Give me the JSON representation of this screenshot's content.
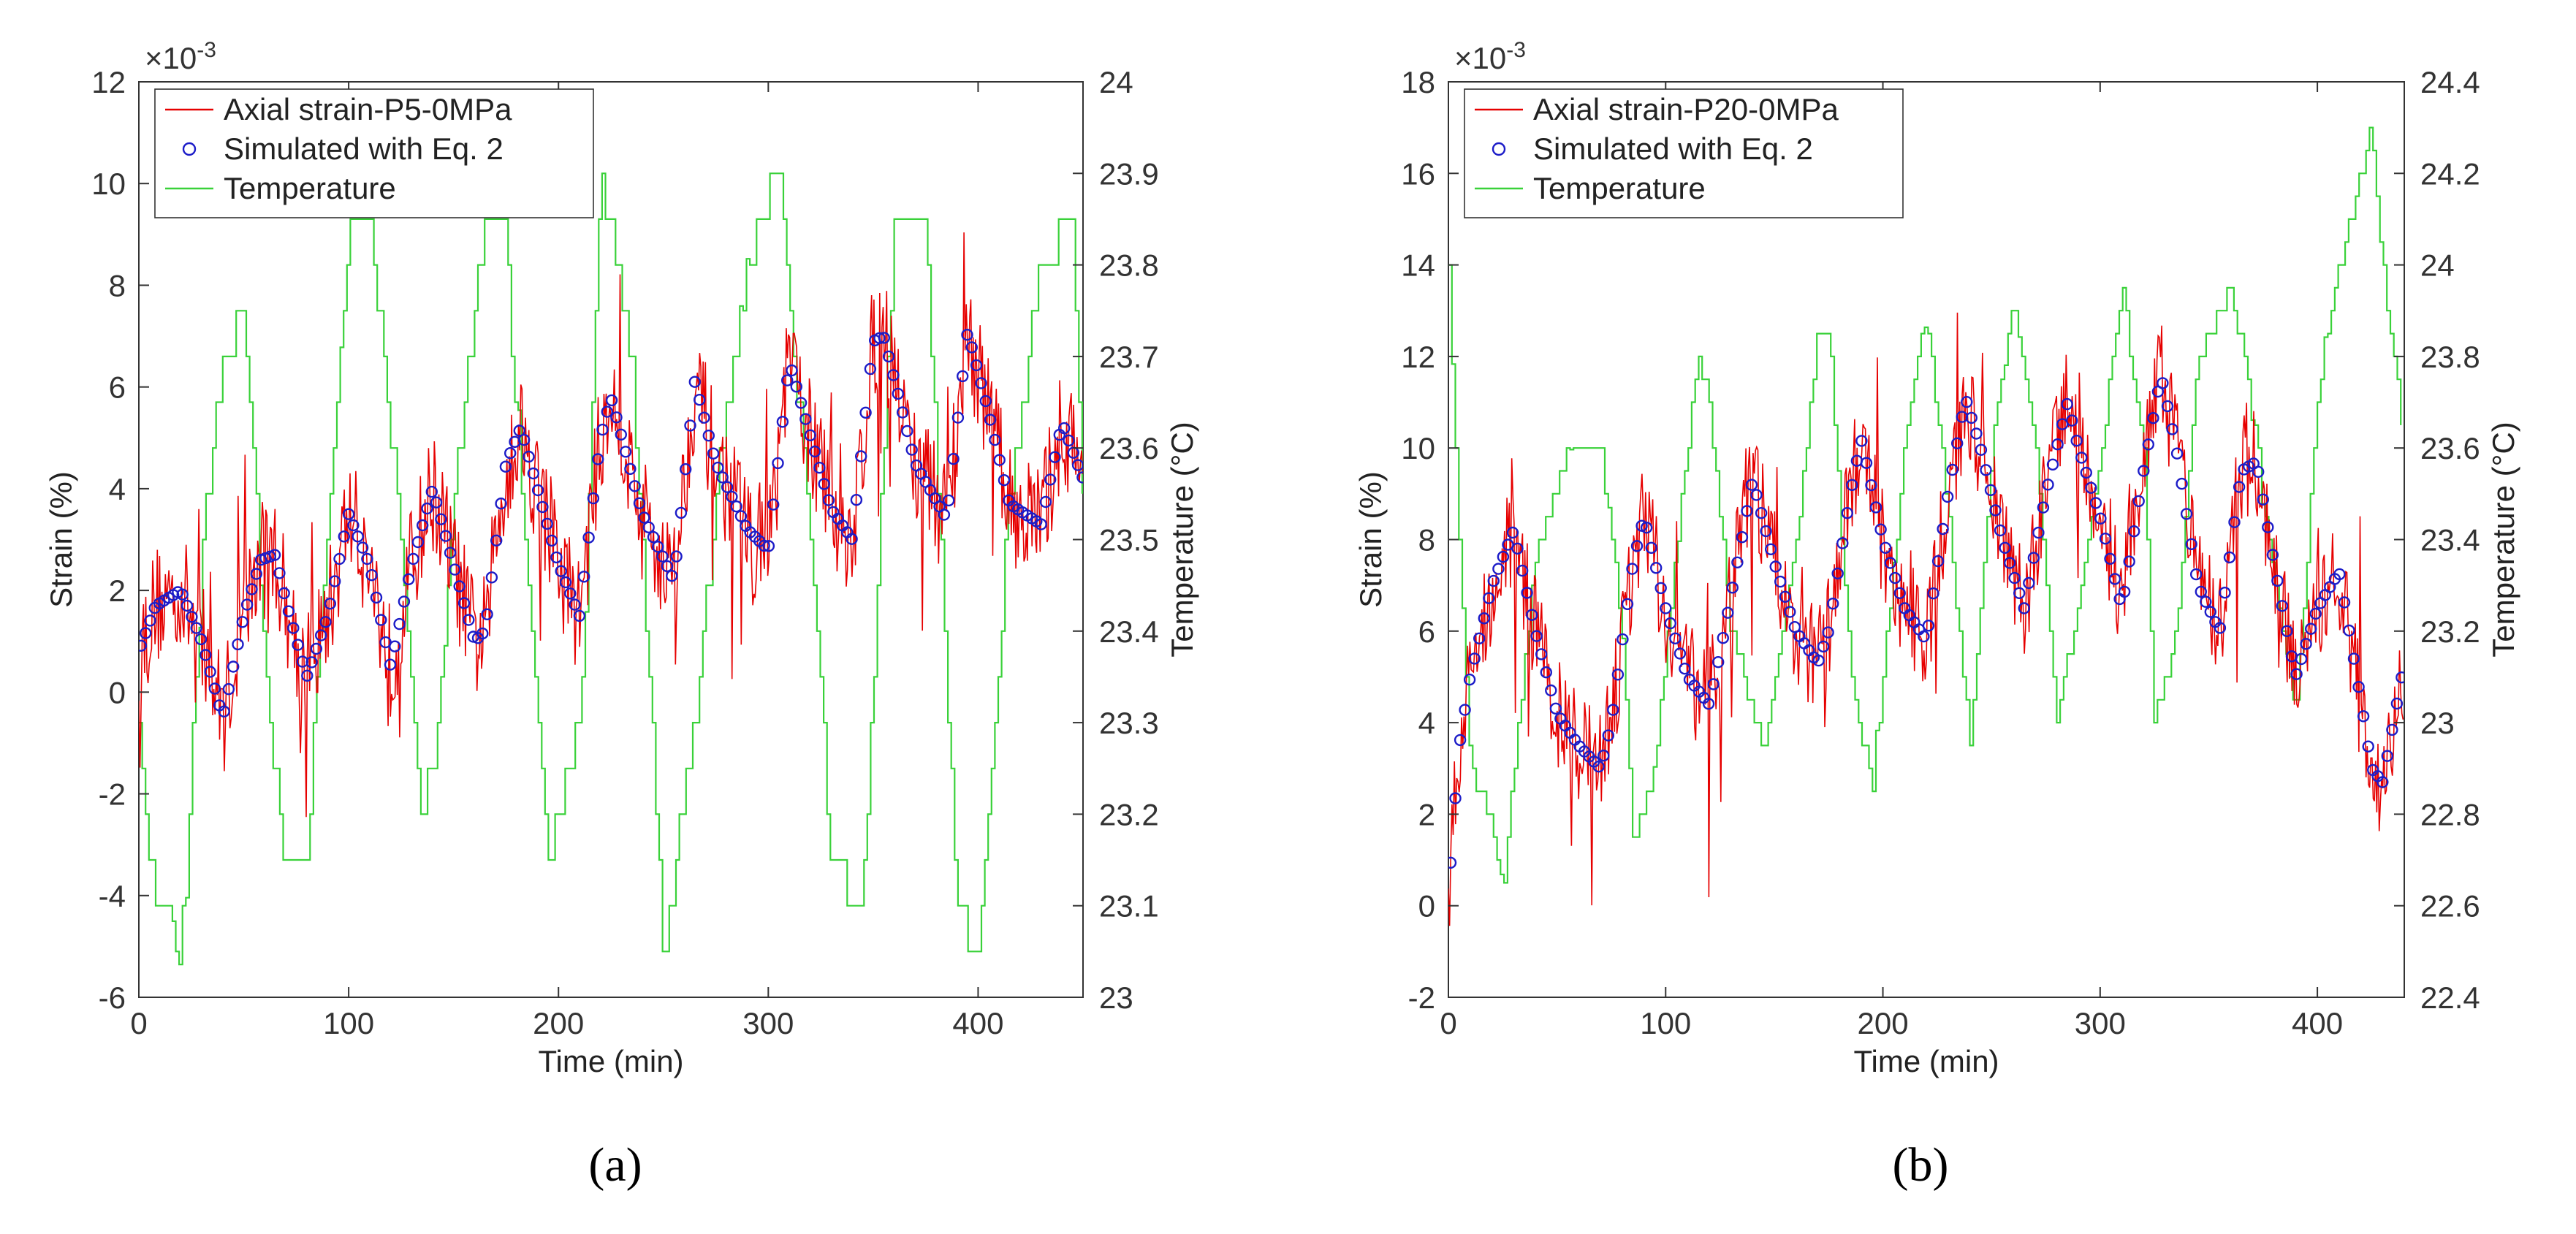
{
  "figure": {
    "panel_labels": [
      "(a)",
      "(b)"
    ]
  },
  "chart_data": [
    {
      "type": "line",
      "panel": "(a)",
      "xlabel": "Time (min)",
      "ylabel": "Strain (%)",
      "y2label": "Temperature (°C)",
      "exponent_label": "×10",
      "exponent_power": "-3",
      "xlim": [
        0,
        450
      ],
      "ylim": [
        -6,
        12
      ],
      "y2lim": [
        23.0,
        24.0
      ],
      "x_ticks": [
        "0",
        "100",
        "200",
        "300",
        "400"
      ],
      "y_ticks": [
        "-6",
        "-4",
        "-2",
        "0",
        "2",
        "4",
        "6",
        "8",
        "10",
        "12"
      ],
      "y2_ticks": [
        "23",
        "23.1",
        "23.2",
        "23.3",
        "23.4",
        "23.5",
        "23.6",
        "23.7",
        "23.8",
        "23.9",
        "24"
      ],
      "legend": [
        "Axial strain-P5-0MPa",
        "Simulated with Eq. 2",
        "Temperature"
      ],
      "legend_position": "top-left",
      "colors": {
        "strain": "#e60000",
        "simulated": "#1c1cc8",
        "temperature": "#39d139"
      },
      "simulated_key": {
        "t": [
          0,
          8,
          20,
          30,
          40,
          50,
          58,
          65,
          70,
          80,
          90,
          100,
          110,
          120,
          130,
          140,
          150,
          160,
          165,
          175,
          182,
          190,
          200,
          210,
          220,
          225,
          240,
          255,
          265,
          275,
          290,
          300,
          310,
          330,
          340,
          350,
          355,
          370,
          385,
          395,
          405,
          415,
          430,
          440,
          450
        ],
        "strain": [
          0.8,
          1.7,
          2.0,
          1.0,
          -0.5,
          1.5,
          2.6,
          2.7,
          1.8,
          0.3,
          1.5,
          3.5,
          2.5,
          0.5,
          2.5,
          4.0,
          2.5,
          1.0,
          1.2,
          4.5,
          5.2,
          4.0,
          2.5,
          1.5,
          5.0,
          5.8,
          3.5,
          2.2,
          6.1,
          4.5,
          3.2,
          2.8,
          6.5,
          3.6,
          3.0,
          6.9,
          7.0,
          4.5,
          3.4,
          7.1,
          5.5,
          3.7,
          3.3,
          5.3,
          4.2
        ]
      },
      "temperature_key": {
        "t": [
          0,
          5,
          10,
          20,
          25,
          30,
          40,
          50,
          55,
          60,
          70,
          80,
          85,
          95,
          100,
          110,
          125,
          135,
          140,
          150,
          165,
          175,
          180,
          195,
          210,
          220,
          235,
          250,
          265,
          280,
          295,
          305,
          320,
          330,
          345,
          360,
          375,
          390,
          400,
          415,
          430,
          445,
          450
        ],
        "temp": [
          23.3,
          23.15,
          23.1,
          23.05,
          23.25,
          23.5,
          23.7,
          23.75,
          23.6,
          23.35,
          23.15,
          23.15,
          23.35,
          23.65,
          23.85,
          23.85,
          23.5,
          23.2,
          23.25,
          23.55,
          23.85,
          23.85,
          23.6,
          23.15,
          23.3,
          23.9,
          23.7,
          23.05,
          23.3,
          23.65,
          23.85,
          23.9,
          23.5,
          23.15,
          23.1,
          23.85,
          23.85,
          23.1,
          23.05,
          23.55,
          23.8,
          23.85,
          23.5
        ]
      }
    },
    {
      "type": "line",
      "panel": "(b)",
      "xlabel": "Time (min)",
      "ylabel": "Strain (%)",
      "y2label": "Temperature (°C)",
      "exponent_label": "×10",
      "exponent_power": "-3",
      "xlim": [
        0,
        440
      ],
      "ylim": [
        -2,
        18
      ],
      "y2lim": [
        22.4,
        24.4
      ],
      "x_ticks": [
        "0",
        "100",
        "200",
        "300",
        "400"
      ],
      "y_ticks": [
        "-2",
        "0",
        "2",
        "4",
        "6",
        "8",
        "10",
        "12",
        "14",
        "16",
        "18"
      ],
      "y2_ticks": [
        "22.4",
        "22.6",
        "22.8",
        "23",
        "23.2",
        "23.4",
        "23.6",
        "23.8",
        "24",
        "24.2",
        "24.4"
      ],
      "legend": [
        "Axial strain-P20-0MPa",
        "Simulated with Eq. 2",
        "Temperature"
      ],
      "legend_position": "top-left",
      "colors": {
        "strain": "#e60000",
        "simulated": "#1c1cc8",
        "temperature": "#39d139"
      },
      "simulated_key": {
        "t": [
          0,
          5,
          10,
          20,
          30,
          40,
          50,
          60,
          70,
          75,
          85,
          90,
          100,
          110,
          120,
          125,
          135,
          140,
          150,
          160,
          170,
          175,
          185,
          190,
          200,
          210,
          220,
          230,
          238,
          245,
          255,
          265,
          275,
          285,
          290,
          300,
          310,
          320,
          328,
          335,
          345,
          355,
          365,
          372,
          380,
          390,
          400,
          410,
          420,
          425,
          430,
          440
        ],
        "strain": [
          0.3,
          3.5,
          5.0,
          7.0,
          8.2,
          6.0,
          4.2,
          3.5,
          3.0,
          4.0,
          7.5,
          8.5,
          6.5,
          5.0,
          4.4,
          5.5,
          8.0,
          9.3,
          7.5,
          6.0,
          5.3,
          6.0,
          9.0,
          10.2,
          8.0,
          6.5,
          5.8,
          9.0,
          11.1,
          10.0,
          8.0,
          6.5,
          9.0,
          11.0,
          10.0,
          8.5,
          6.5,
          9.5,
          11.6,
          10.0,
          7.0,
          6.0,
          9.5,
          9.7,
          7.5,
          5.0,
          6.5,
          7.3,
          4.5,
          3.0,
          2.7,
          5.3
        ]
      },
      "temperature_key": {
        "t": [
          0,
          5,
          10,
          20,
          25,
          30,
          40,
          55,
          70,
          80,
          85,
          95,
          105,
          115,
          120,
          130,
          145,
          160,
          170,
          175,
          185,
          195,
          210,
          220,
          230,
          240,
          250,
          260,
          270,
          280,
          295,
          310,
          320,
          325,
          335,
          345,
          360,
          370,
          380,
          390,
          400,
          410,
          420,
          425,
          430,
          440
        ],
        "temp": [
          24.0,
          23.4,
          22.9,
          22.8,
          22.6,
          22.9,
          23.35,
          23.6,
          23.6,
          23.2,
          22.75,
          22.9,
          23.4,
          23.8,
          23.7,
          23.2,
          22.95,
          23.4,
          23.85,
          23.85,
          23.1,
          22.85,
          23.6,
          23.9,
          23.45,
          22.95,
          23.6,
          23.95,
          23.6,
          23.0,
          23.4,
          23.95,
          23.6,
          23.0,
          23.2,
          23.8,
          23.95,
          23.7,
          23.3,
          23.0,
          23.7,
          24.0,
          24.2,
          24.3,
          24.0,
          23.6
        ]
      }
    }
  ]
}
